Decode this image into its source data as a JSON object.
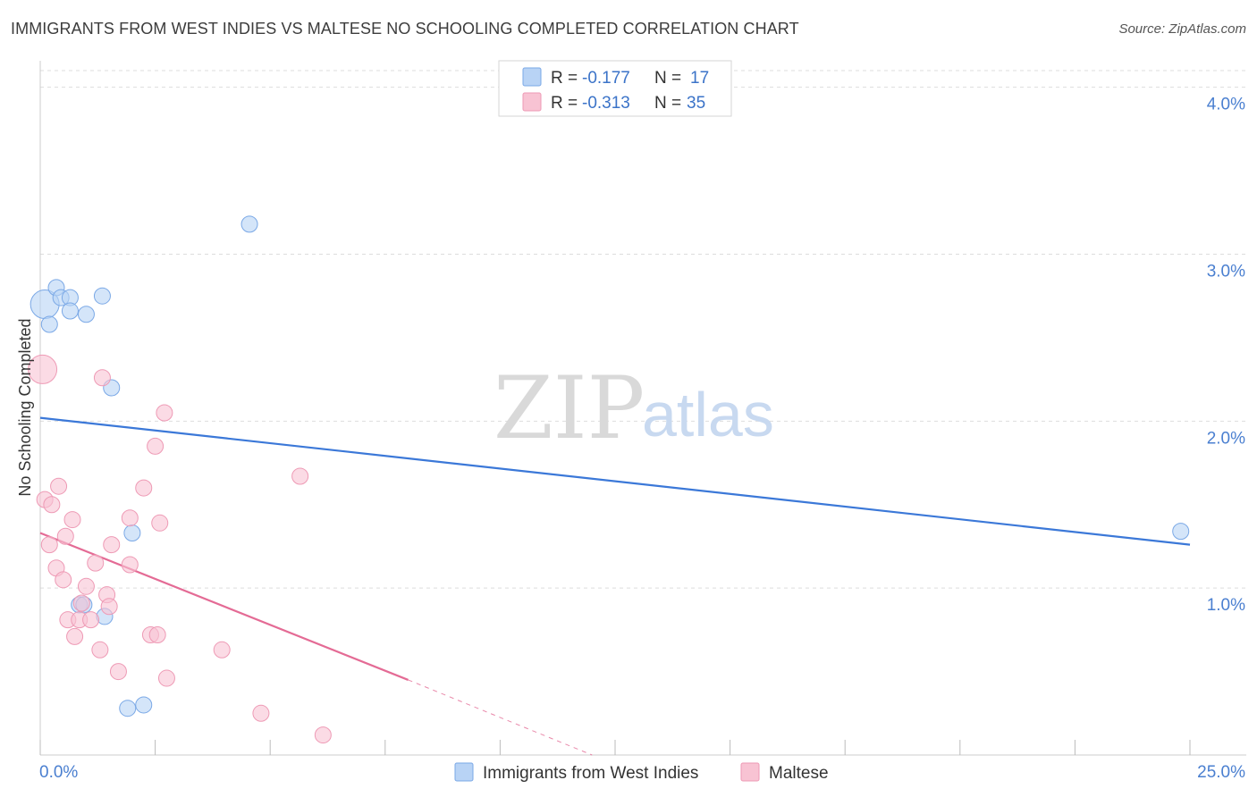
{
  "title": "IMMIGRANTS FROM WEST INDIES VS MALTESE NO SCHOOLING COMPLETED CORRELATION CHART",
  "source": "Source: ZipAtlas.com",
  "watermark": {
    "zip": "ZIP",
    "atlas": "atlas"
  },
  "colors": {
    "blue_fill": "#b8d3f5",
    "blue_stroke": "#7aa8e6",
    "blue_line": "#3b78d8",
    "pink_fill": "#f8c3d3",
    "pink_stroke": "#ee9ab5",
    "pink_line": "#e46b95",
    "tick_text": "#4a7fd0",
    "grid": "#dddddd"
  },
  "legend": {
    "rows": [
      {
        "r_label": "R = ",
        "r_value": "-0.177",
        "n_label": "N = ",
        "n_value": "17"
      },
      {
        "r_label": "R = ",
        "r_value": "-0.313",
        "n_label": "N = ",
        "n_value": "35"
      }
    ]
  },
  "chart_data": {
    "type": "scatter",
    "title": "IMMIGRANTS FROM WEST INDIES VS MALTESE NO SCHOOLING COMPLETED CORRELATION CHART",
    "xlabel": "",
    "ylabel": "No Schooling Completed",
    "xlim": [
      0,
      25
    ],
    "ylim": [
      0,
      4.1
    ],
    "x_tick_labels": [
      "0.0%",
      "25.0%"
    ],
    "y_ticks": [
      1.0,
      2.0,
      3.0,
      4.0
    ],
    "y_tick_labels": [
      "1.0%",
      "2.0%",
      "3.0%",
      "4.0%"
    ],
    "grid": true,
    "series": [
      {
        "name": "Immigrants from West Indies",
        "color": "blue",
        "R": -0.177,
        "N": 17,
        "trend": {
          "x0": 0,
          "y0": 2.02,
          "x1": 25,
          "y1": 1.26
        },
        "points": [
          {
            "x": 0.1,
            "y": 2.7,
            "s": 16
          },
          {
            "x": 0.2,
            "y": 2.58,
            "s": 9
          },
          {
            "x": 0.35,
            "y": 2.8,
            "s": 9
          },
          {
            "x": 0.45,
            "y": 2.74,
            "s": 9
          },
          {
            "x": 0.65,
            "y": 2.74,
            "s": 9
          },
          {
            "x": 0.65,
            "y": 2.66,
            "s": 9
          },
          {
            "x": 1.0,
            "y": 2.64,
            "s": 9
          },
          {
            "x": 1.35,
            "y": 2.75,
            "s": 9
          },
          {
            "x": 1.55,
            "y": 2.2,
            "s": 9
          },
          {
            "x": 4.55,
            "y": 3.18,
            "s": 9
          },
          {
            "x": 2.0,
            "y": 1.33,
            "s": 9
          },
          {
            "x": 0.85,
            "y": 0.9,
            "s": 9
          },
          {
            "x": 0.95,
            "y": 0.9,
            "s": 9
          },
          {
            "x": 1.4,
            "y": 0.83,
            "s": 9
          },
          {
            "x": 1.9,
            "y": 0.28,
            "s": 9
          },
          {
            "x": 2.25,
            "y": 0.3,
            "s": 9
          },
          {
            "x": 24.8,
            "y": 1.34,
            "s": 9
          }
        ]
      },
      {
        "name": "Maltese",
        "color": "pink",
        "R": -0.313,
        "N": 35,
        "trend": {
          "x0": 0,
          "y0": 1.33,
          "x1": 8.0,
          "y1": 0.45,
          "dash_to_x": 12.0,
          "dash_to_y": 0.0
        },
        "points": [
          {
            "x": 0.05,
            "y": 2.31,
            "s": 16
          },
          {
            "x": 1.35,
            "y": 2.26,
            "s": 9
          },
          {
            "x": 2.7,
            "y": 2.05,
            "s": 9
          },
          {
            "x": 2.5,
            "y": 1.85,
            "s": 9
          },
          {
            "x": 0.4,
            "y": 1.61,
            "s": 9
          },
          {
            "x": 2.25,
            "y": 1.6,
            "s": 9
          },
          {
            "x": 5.65,
            "y": 1.67,
            "s": 9
          },
          {
            "x": 0.1,
            "y": 1.53,
            "s": 9
          },
          {
            "x": 0.25,
            "y": 1.5,
            "s": 9
          },
          {
            "x": 0.7,
            "y": 1.41,
            "s": 9
          },
          {
            "x": 1.95,
            "y": 1.42,
            "s": 9
          },
          {
            "x": 2.6,
            "y": 1.39,
            "s": 9
          },
          {
            "x": 0.55,
            "y": 1.31,
            "s": 9
          },
          {
            "x": 0.2,
            "y": 1.26,
            "s": 9
          },
          {
            "x": 1.55,
            "y": 1.26,
            "s": 9
          },
          {
            "x": 1.2,
            "y": 1.15,
            "s": 9
          },
          {
            "x": 1.95,
            "y": 1.14,
            "s": 9
          },
          {
            "x": 0.35,
            "y": 1.12,
            "s": 9
          },
          {
            "x": 0.5,
            "y": 1.05,
            "s": 9
          },
          {
            "x": 1.0,
            "y": 1.01,
            "s": 9
          },
          {
            "x": 1.45,
            "y": 0.96,
            "s": 9
          },
          {
            "x": 0.9,
            "y": 0.91,
            "s": 9
          },
          {
            "x": 1.5,
            "y": 0.89,
            "s": 9
          },
          {
            "x": 0.6,
            "y": 0.81,
            "s": 9
          },
          {
            "x": 0.85,
            "y": 0.81,
            "s": 9
          },
          {
            "x": 1.1,
            "y": 0.81,
            "s": 9
          },
          {
            "x": 0.75,
            "y": 0.71,
            "s": 9
          },
          {
            "x": 2.4,
            "y": 0.72,
            "s": 9
          },
          {
            "x": 2.55,
            "y": 0.72,
            "s": 9
          },
          {
            "x": 1.3,
            "y": 0.63,
            "s": 9
          },
          {
            "x": 3.95,
            "y": 0.63,
            "s": 9
          },
          {
            "x": 1.7,
            "y": 0.5,
            "s": 9
          },
          {
            "x": 2.75,
            "y": 0.46,
            "s": 9
          },
          {
            "x": 4.8,
            "y": 0.25,
            "s": 9
          },
          {
            "x": 6.15,
            "y": 0.12,
            "s": 9
          }
        ]
      }
    ]
  }
}
